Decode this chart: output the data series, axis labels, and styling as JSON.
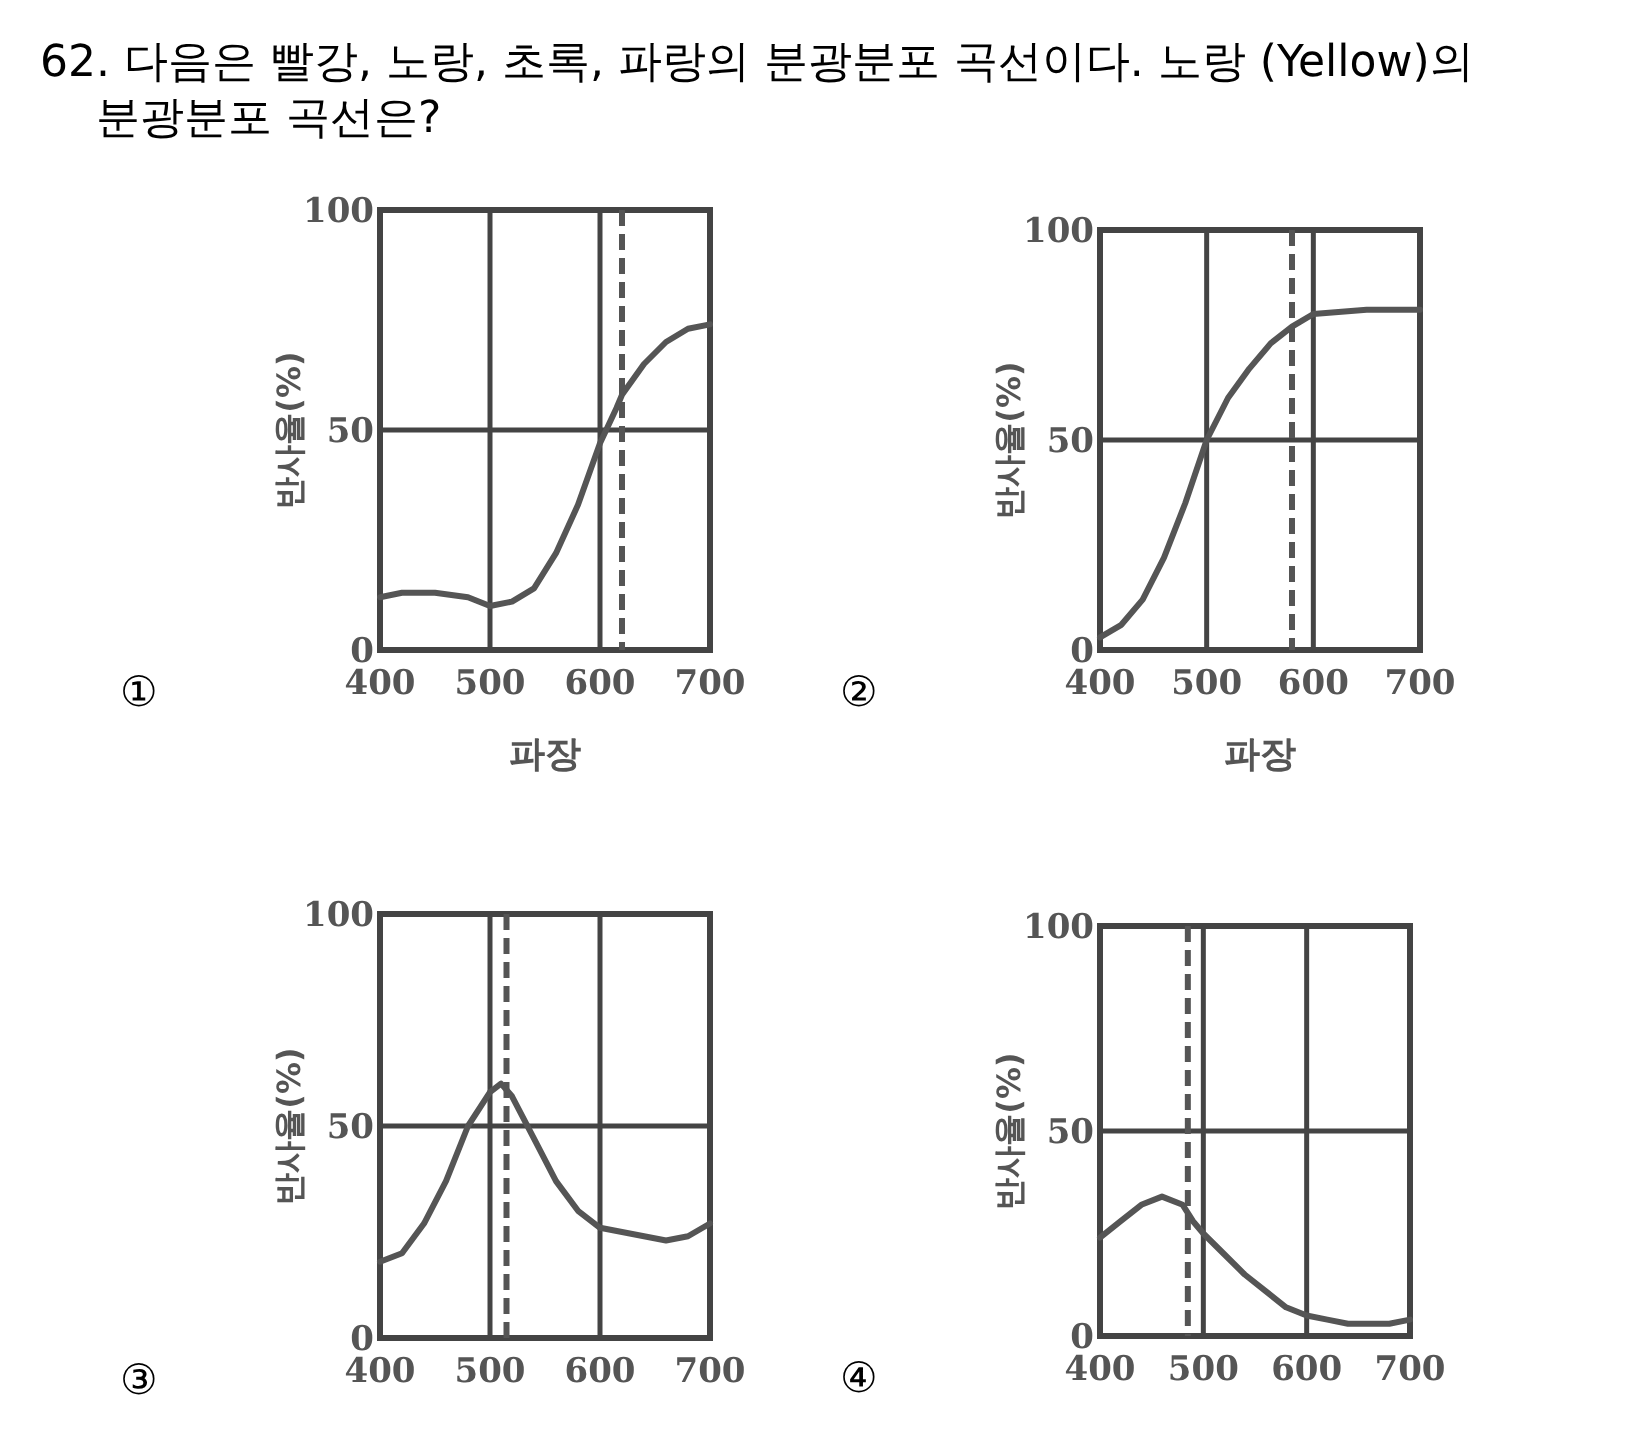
{
  "chart_data": [
    {
      "type": "line",
      "title": "62. 다음은 빨강, 노랑, 초록, 파랑의 분광분포 곡선이다. 노랑 (Yellow)의 분광분포 곡선은?",
      "xlabel": "파장",
      "ylabel": "반사율(%)",
      "annotations": [
        "①"
      ],
      "x": [
        400,
        420,
        450,
        480,
        500,
        520,
        540,
        560,
        580,
        600,
        615,
        620,
        640,
        660,
        680,
        700
      ],
      "series": [
        {
          "color": "#555555",
          "values": [
            12,
            13,
            13,
            12,
            10,
            11,
            14,
            22,
            33,
            47,
            55,
            58,
            65,
            70,
            73,
            74
          ]
        }
      ],
      "ref_lines": [
        {
          "axis": "x",
          "value": 620,
          "line_style": "dashed",
          "color": "#555555"
        }
      ],
      "xlim": [
        400,
        700
      ],
      "xticks": [
        400,
        500,
        600,
        700
      ],
      "ylim": [
        0,
        100
      ],
      "yticks": [
        0,
        50,
        100
      ],
      "grid": true
    },
    {
      "type": "line",
      "xlabel": "파장",
      "ylabel": "반사율(%)",
      "annotations": [
        "②"
      ],
      "x": [
        400,
        420,
        440,
        460,
        480,
        500,
        520,
        540,
        560,
        580,
        600,
        650,
        700
      ],
      "series": [
        {
          "color": "#555555",
          "values": [
            3,
            6,
            12,
            22,
            35,
            50,
            60,
            67,
            73,
            77,
            80,
            81,
            81
          ]
        }
      ],
      "ref_lines": [
        {
          "axis": "x",
          "value": 580,
          "line_style": "dashed",
          "color": "#555555"
        }
      ],
      "xlim": [
        400,
        700
      ],
      "xticks": [
        400,
        500,
        600,
        700
      ],
      "ylim": [
        0,
        100
      ],
      "yticks": [
        0,
        50,
        100
      ],
      "grid": true
    },
    {
      "type": "line",
      "ylabel": "반사율(%)",
      "annotations": [
        "③"
      ],
      "x": [
        400,
        420,
        440,
        460,
        480,
        500,
        510,
        520,
        540,
        560,
        580,
        600,
        640,
        660,
        680,
        700
      ],
      "series": [
        {
          "color": "#555555",
          "values": [
            18,
            20,
            27,
            37,
            50,
            58,
            60,
            57,
            47,
            37,
            30,
            26,
            24,
            23,
            24,
            27
          ]
        }
      ],
      "ref_lines": [
        {
          "axis": "x",
          "value": 515,
          "line_style": "dashed",
          "color": "#555555"
        }
      ],
      "xlim": [
        400,
        700
      ],
      "xticks": [
        400,
        500,
        600,
        700
      ],
      "ylim": [
        0,
        100
      ],
      "yticks": [
        0,
        50,
        100
      ],
      "grid": true
    },
    {
      "type": "line",
      "ylabel": "반사율(%)",
      "annotations": [
        "④"
      ],
      "x": [
        400,
        420,
        440,
        460,
        480,
        490,
        500,
        520,
        540,
        560,
        580,
        600,
        620,
        640,
        680,
        700
      ],
      "series": [
        {
          "color": "#555555",
          "values": [
            24,
            28,
            32,
            34,
            32,
            28,
            25,
            20,
            15,
            11,
            7,
            5,
            4,
            3,
            3,
            4
          ]
        }
      ],
      "ref_lines": [
        {
          "axis": "x",
          "value": 485,
          "line_style": "dashed",
          "color": "#555555"
        }
      ],
      "xlim": [
        400,
        700
      ],
      "xticks": [
        400,
        500,
        600,
        700
      ],
      "ylim": [
        0,
        100
      ],
      "yticks": [
        0,
        50,
        100
      ],
      "grid": true
    }
  ]
}
